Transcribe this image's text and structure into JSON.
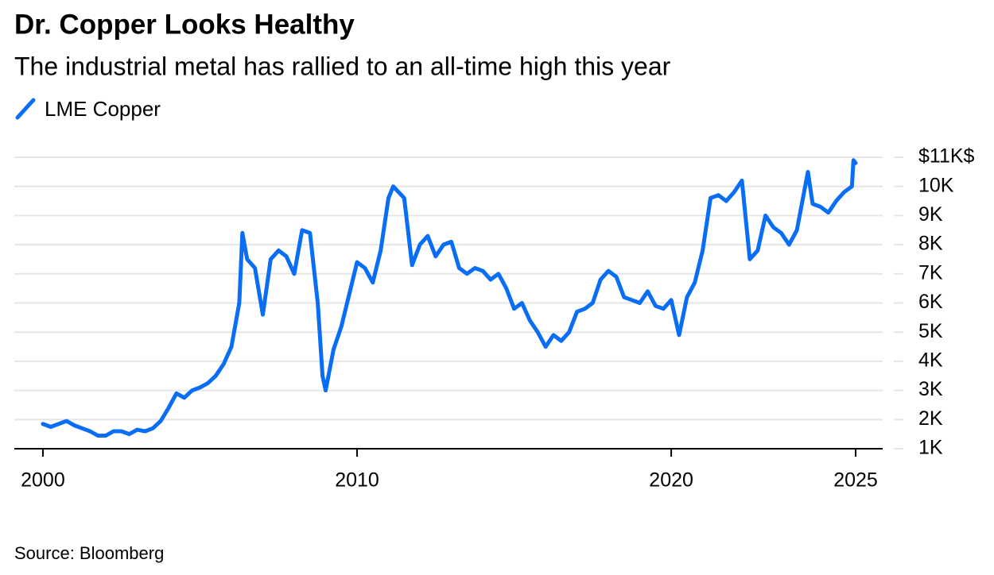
{
  "chart_data": {
    "type": "line",
    "title": "Dr. Copper Looks Healthy",
    "subtitle": "The industrial metal has rallied to an all-time high this year",
    "source": "Source: Bloomberg",
    "legend": "top-left",
    "grid": true,
    "x": [
      2000.0,
      2000.25,
      2000.5,
      2000.75,
      2001.0,
      2001.25,
      2001.5,
      2001.75,
      2002.0,
      2002.25,
      2002.5,
      2002.75,
      2003.0,
      2003.25,
      2003.5,
      2003.75,
      2004.0,
      2004.25,
      2004.5,
      2004.75,
      2005.0,
      2005.25,
      2005.5,
      2005.75,
      2006.0,
      2006.25,
      2006.35,
      2006.5,
      2006.75,
      2007.0,
      2007.25,
      2007.5,
      2007.75,
      2008.0,
      2008.25,
      2008.5,
      2008.75,
      2008.9,
      2009.0,
      2009.25,
      2009.5,
      2009.75,
      2010.0,
      2010.25,
      2010.5,
      2010.75,
      2011.0,
      2011.15,
      2011.5,
      2011.75,
      2012.0,
      2012.25,
      2012.5,
      2012.75,
      2013.0,
      2013.25,
      2013.5,
      2013.75,
      2014.0,
      2014.25,
      2014.5,
      2014.75,
      2015.0,
      2015.25,
      2015.5,
      2015.75,
      2016.0,
      2016.25,
      2016.5,
      2016.75,
      2017.0,
      2017.25,
      2017.5,
      2017.75,
      2018.0,
      2018.25,
      2018.5,
      2018.75,
      2019.0,
      2019.25,
      2019.5,
      2019.75,
      2020.0,
      2020.25,
      2020.5,
      2020.75,
      2021.0,
      2021.25,
      2021.5,
      2021.75,
      2022.0,
      2022.25,
      2022.5,
      2022.75,
      2023.0,
      2023.25,
      2023.5,
      2023.75,
      2024.0,
      2024.35,
      2024.5,
      2024.75,
      2025.0,
      2025.25,
      2025.5,
      2025.75,
      2025.8,
      2025.87
    ],
    "series": [
      {
        "name": "LME Copper",
        "color": "#0a6ef5",
        "values": [
          1850,
          1750,
          1850,
          1950,
          1800,
          1700,
          1600,
          1450,
          1450,
          1600,
          1600,
          1500,
          1650,
          1600,
          1700,
          1950,
          2400,
          2900,
          2750,
          3000,
          3100,
          3250,
          3500,
          3900,
          4500,
          6000,
          8400,
          7500,
          7200,
          5600,
          7500,
          7800,
          7600,
          7000,
          8500,
          8400,
          6000,
          3500,
          3000,
          4400,
          5200,
          6300,
          7400,
          7200,
          6700,
          7800,
          9600,
          10000,
          9600,
          7300,
          8000,
          8300,
          7600,
          8000,
          8100,
          7200,
          7000,
          7200,
          7100,
          6800,
          7000,
          6500,
          5800,
          6000,
          5400,
          5000,
          4500,
          4900,
          4700,
          5000,
          5700,
          5800,
          6000,
          6800,
          7100,
          6900,
          6200,
          6100,
          6000,
          6400,
          5900,
          5800,
          6100,
          4900,
          6200,
          6700,
          7800,
          9600,
          9700,
          9500,
          9800,
          10200,
          7500,
          7800,
          9000,
          8600,
          8400,
          8000,
          8500,
          10500,
          9400,
          9300,
          9100,
          9500,
          9800,
          10000,
          10900,
          10800
        ]
      }
    ],
    "xlim": [
      1999.09,
      2026.73
    ],
    "xticks": [
      2000,
      2010,
      2020,
      {
        "value": 2025.87,
        "label": "2025"
      }
    ],
    "ylim": [
      1000,
      11000
    ],
    "yticks": [
      {
        "value": 1000,
        "label": "1K"
      },
      {
        "value": 2000,
        "label": "2K"
      },
      {
        "value": 3000,
        "label": "3K"
      },
      {
        "value": 4000,
        "label": "4K"
      },
      {
        "value": 5000,
        "label": "5K"
      },
      {
        "value": 6000,
        "label": "6K"
      },
      {
        "value": 7000,
        "label": "7K"
      },
      {
        "value": 8000,
        "label": "8K"
      },
      {
        "value": 9000,
        "label": "9K"
      },
      {
        "value": 10000,
        "label": "10K"
      },
      {
        "value": 11000,
        "label": "$11K$"
      }
    ]
  }
}
